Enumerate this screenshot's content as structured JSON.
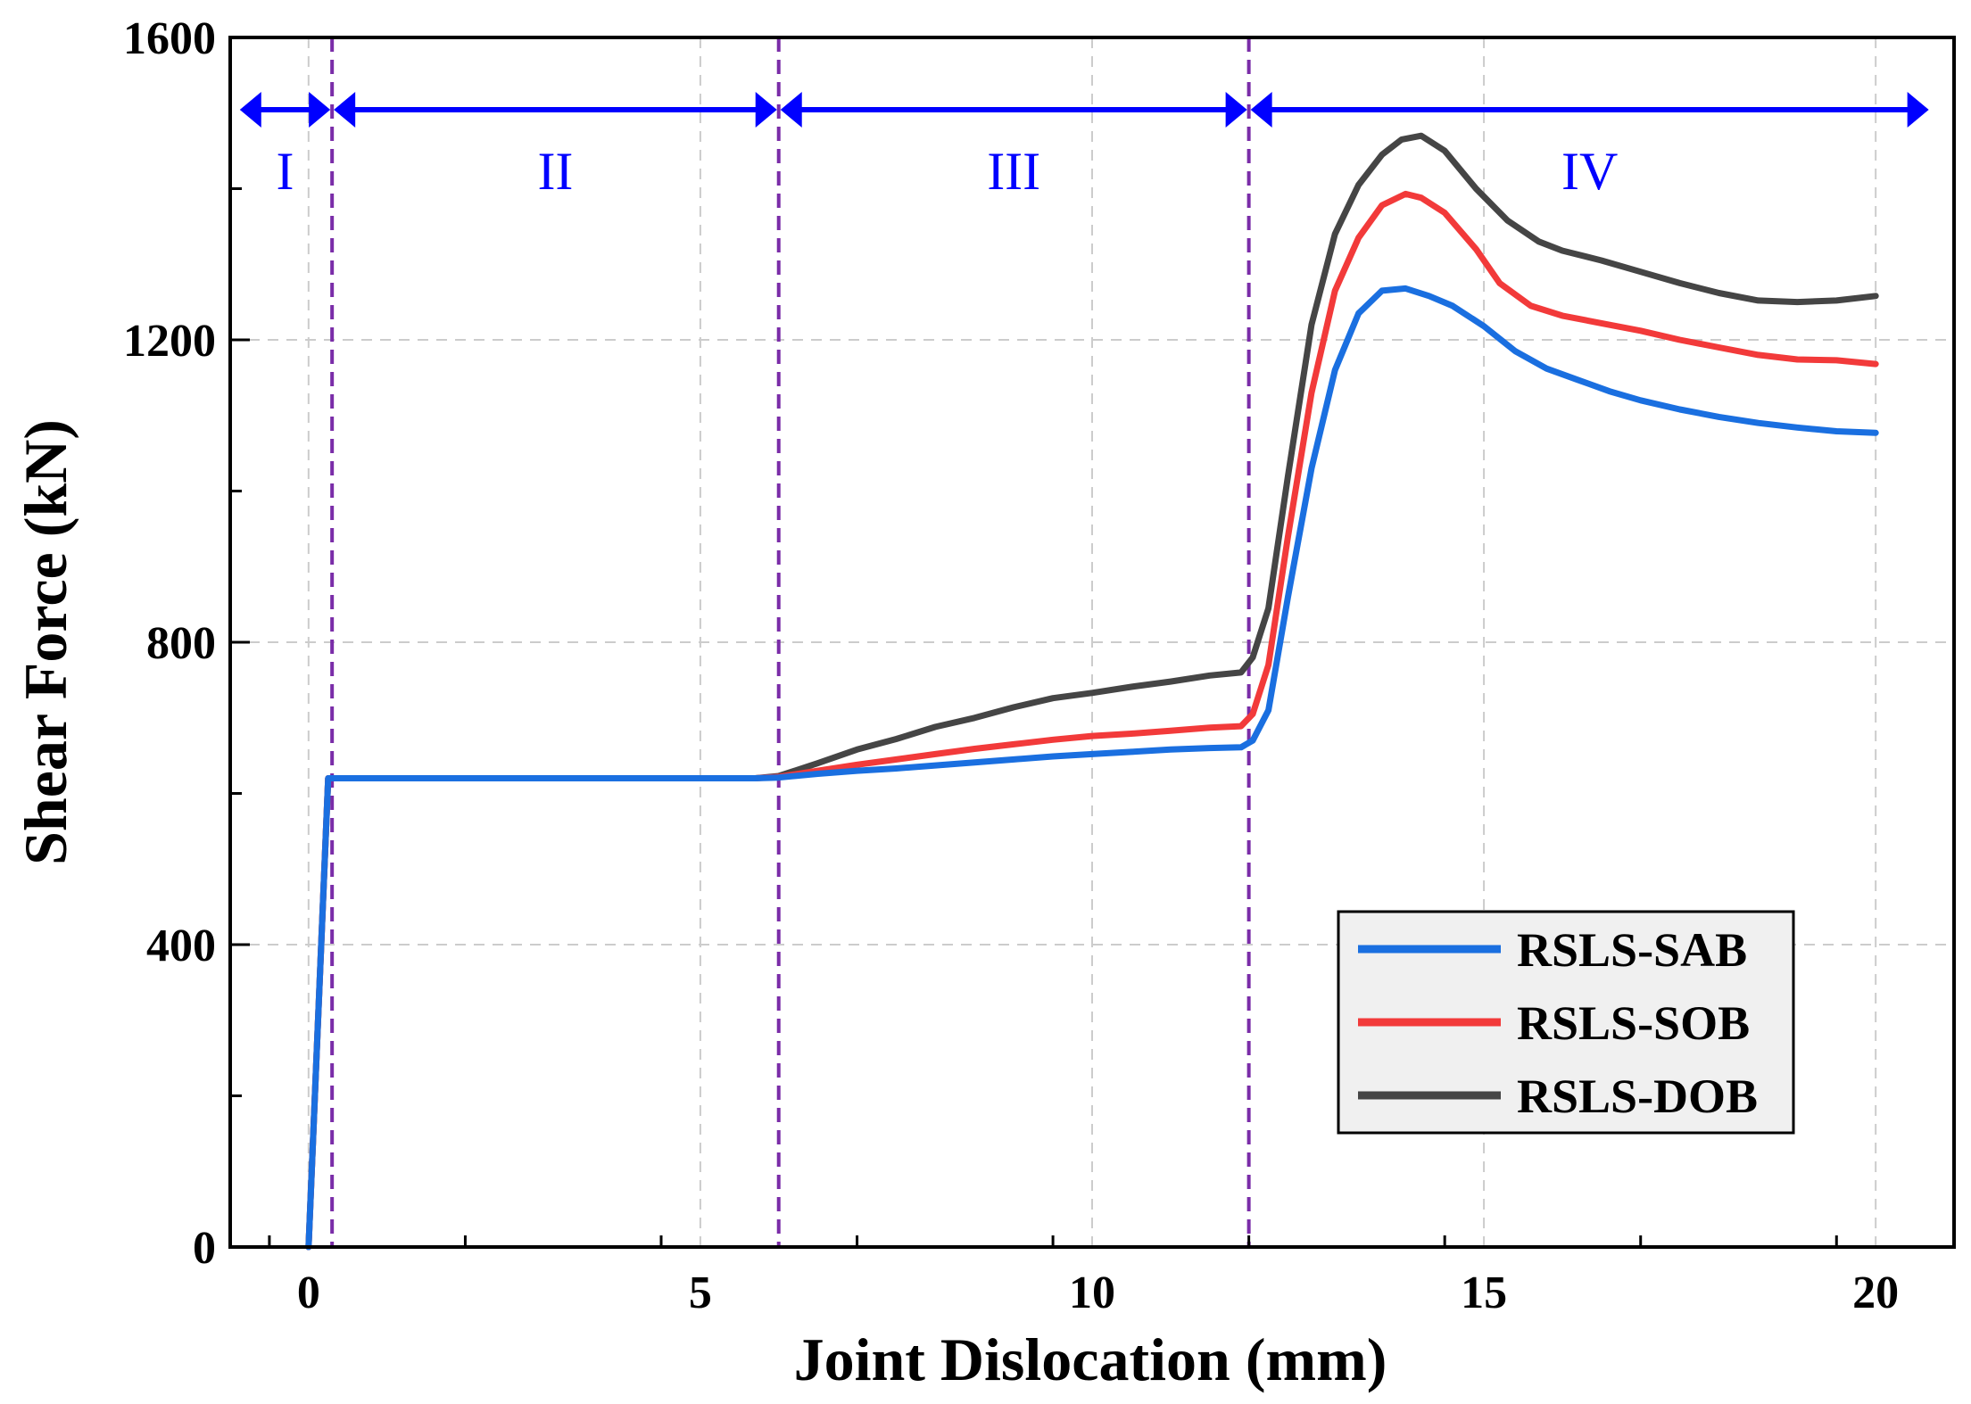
{
  "chart_data": {
    "type": "line",
    "title": "",
    "xlabel": "Joint Dislocation (mm)",
    "ylabel": "Shear Force (kN)",
    "xlim": [
      -1,
      21
    ],
    "ylim": [
      0,
      1600
    ],
    "grid": true,
    "x_ticks": [
      0,
      5,
      10,
      15,
      20
    ],
    "x_tick_labels": [
      "0",
      "5",
      "10",
      "15",
      "20"
    ],
    "y_ticks": [
      0,
      400,
      800,
      1200,
      1600
    ],
    "y_tick_labels": [
      "0",
      "400",
      "800",
      "1200",
      "1600"
    ],
    "legend_position": "bottom-right",
    "colors": {
      "RSLS-SAB": "#1a6fe0",
      "RSLS-SOB": "#f23a3a",
      "RSLS-DOB": "#454545",
      "regions": "#0000ff",
      "dividers": "#7a2ca8"
    },
    "stage_boundaries": [
      0.3,
      6.0,
      12.0
    ],
    "regions": [
      {
        "label": "I",
        "start": -0.9,
        "end": 0.3
      },
      {
        "label": "II",
        "start": 0.3,
        "end": 6.0
      },
      {
        "label": "III",
        "start": 6.0,
        "end": 12.0
      },
      {
        "label": "IV",
        "start": 12.0,
        "end": 20.7
      }
    ],
    "series": [
      {
        "name": "RSLS-SAB",
        "x": [
          0,
          0.25,
          1,
          2,
          3,
          4,
          5,
          5.7,
          6,
          6.5,
          7,
          7.5,
          8,
          8.5,
          9,
          9.5,
          10,
          10.5,
          11,
          11.5,
          11.9,
          12.05,
          12.25,
          12.5,
          12.8,
          13.1,
          13.4,
          13.7,
          14.0,
          14.3,
          14.6,
          15.0,
          15.4,
          15.8,
          16.2,
          16.6,
          17.0,
          17.5,
          18.0,
          18.5,
          19.0,
          19.5,
          20.0
        ],
        "y": [
          0,
          620,
          620,
          620,
          620,
          620,
          620,
          620,
          621,
          626,
          630,
          633,
          637,
          641,
          645,
          649,
          652,
          655,
          658,
          660,
          661,
          670,
          710,
          860,
          1030,
          1160,
          1235,
          1265,
          1268,
          1258,
          1245,
          1218,
          1185,
          1162,
          1147,
          1132,
          1120,
          1108,
          1098,
          1090,
          1084,
          1079,
          1077
        ]
      },
      {
        "name": "RSLS-SOB",
        "x": [
          0,
          0.25,
          1,
          2,
          3,
          4,
          5,
          5.7,
          6,
          6.5,
          7,
          7.5,
          8,
          8.5,
          9,
          9.5,
          10,
          10.5,
          11,
          11.5,
          11.9,
          12.05,
          12.25,
          12.5,
          12.8,
          13.1,
          13.4,
          13.7,
          14.0,
          14.2,
          14.5,
          14.9,
          15.2,
          15.6,
          16.0,
          16.5,
          17.0,
          17.5,
          18.0,
          18.5,
          19.0,
          19.5,
          20.0
        ],
        "y": [
          0,
          620,
          620,
          620,
          620,
          620,
          620,
          620,
          622,
          630,
          638,
          645,
          652,
          659,
          665,
          671,
          676,
          679,
          683,
          687,
          689,
          705,
          770,
          940,
          1130,
          1265,
          1335,
          1378,
          1393,
          1388,
          1368,
          1320,
          1275,
          1245,
          1232,
          1222,
          1212,
          1200,
          1190,
          1180,
          1174,
          1173,
          1168
        ]
      },
      {
        "name": "RSLS-DOB",
        "x": [
          0,
          0.25,
          1,
          2,
          3,
          4,
          5,
          5.7,
          6,
          6.5,
          7,
          7.5,
          8,
          8.5,
          9,
          9.5,
          10,
          10.5,
          11,
          11.5,
          11.9,
          12.05,
          12.25,
          12.5,
          12.8,
          13.1,
          13.4,
          13.7,
          13.95,
          14.2,
          14.5,
          14.9,
          15.3,
          15.7,
          16.0,
          16.5,
          17.0,
          17.5,
          18.0,
          18.5,
          19.0,
          19.5,
          20.0
        ],
        "y": [
          0,
          620,
          620,
          620,
          620,
          620,
          620,
          620,
          623,
          640,
          658,
          672,
          688,
          700,
          714,
          726,
          733,
          741,
          748,
          756,
          760,
          780,
          845,
          1020,
          1220,
          1340,
          1405,
          1445,
          1465,
          1470,
          1450,
          1400,
          1358,
          1330,
          1318,
          1305,
          1290,
          1275,
          1262,
          1252,
          1250,
          1252,
          1258
        ]
      }
    ]
  }
}
